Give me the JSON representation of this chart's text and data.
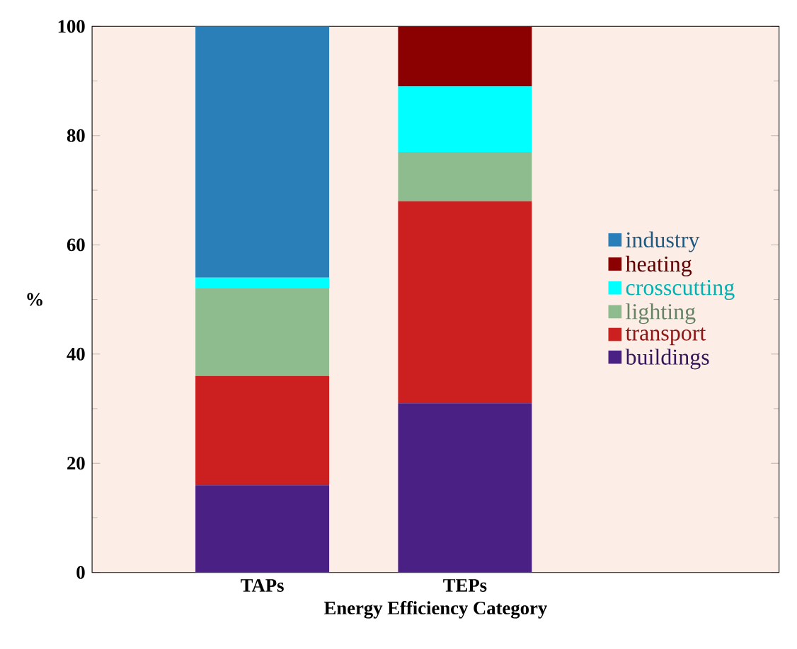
{
  "chart_data": {
    "type": "bar",
    "stacked": true,
    "xlabel": "Energy Efficiency Category",
    "ylabel": "%",
    "categories": [
      "TAPs",
      "TEPs"
    ],
    "ylim": [
      0,
      100
    ],
    "yticks": [
      0,
      20,
      40,
      60,
      80,
      100
    ],
    "legend": "right",
    "grid": false,
    "series": [
      {
        "name": "buildings",
        "color": "#4b2085",
        "values": [
          16,
          31
        ]
      },
      {
        "name": "transport",
        "color": "#cc1f1f",
        "values": [
          20,
          37
        ]
      },
      {
        "name": "lighting",
        "color": "#8fbc8f",
        "values": [
          16,
          9
        ]
      },
      {
        "name": "crosscutting",
        "color": "#00ffff",
        "values": [
          2,
          12
        ]
      },
      {
        "name": "heating",
        "color": "#8b0000",
        "values": [
          0,
          11
        ]
      },
      {
        "name": "industry",
        "color": "#2a7fb8",
        "values": [
          46,
          0
        ]
      }
    ]
  }
}
